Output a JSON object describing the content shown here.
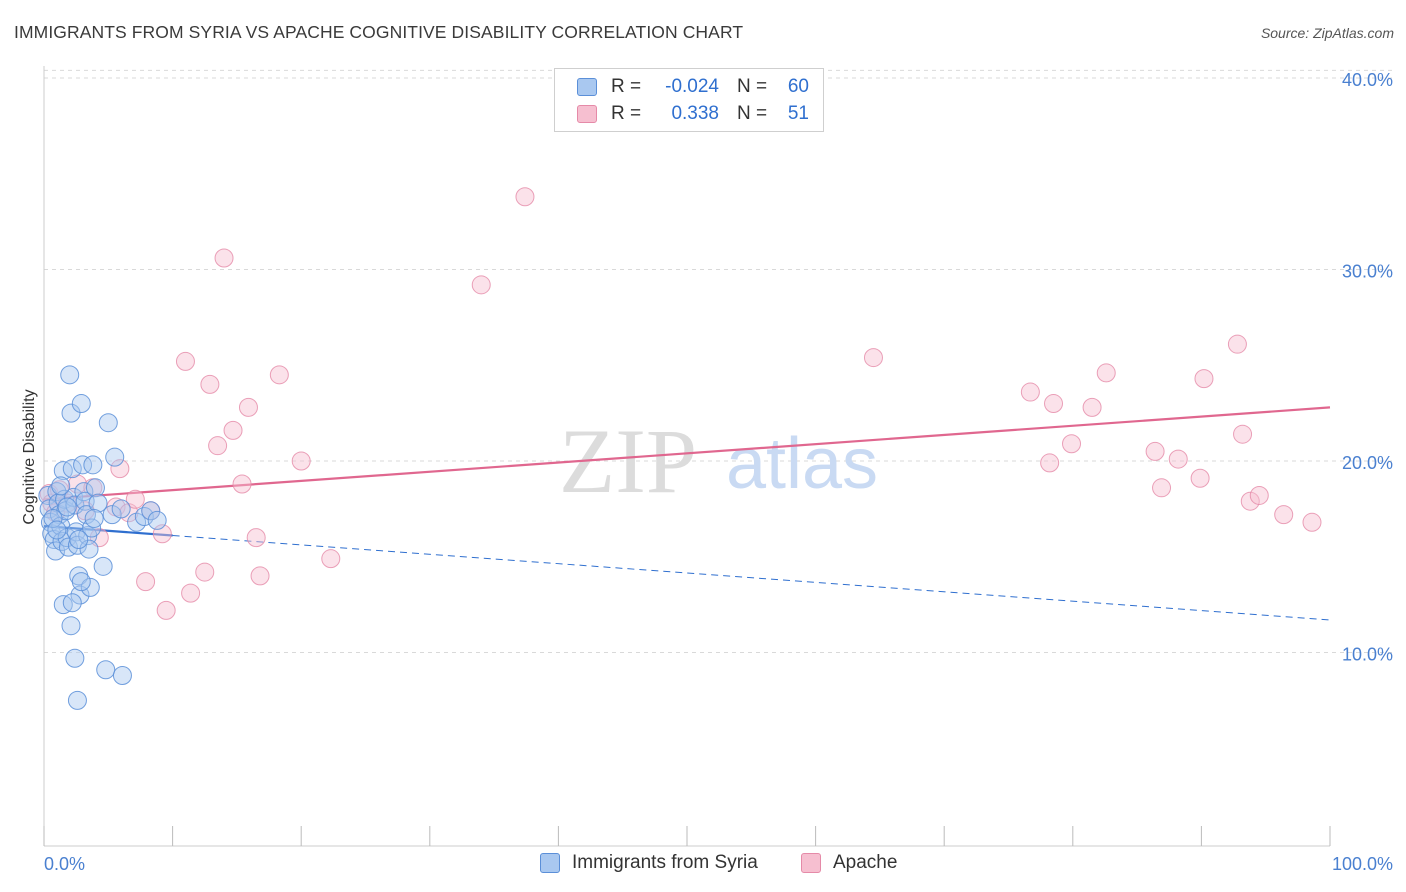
{
  "title": "IMMIGRANTS FROM SYRIA VS APACHE COGNITIVE DISABILITY CORRELATION CHART",
  "source": "Source: ZipAtlas.com",
  "watermark": {
    "zip": "ZIP",
    "atlas": "atlas"
  },
  "colors": {
    "blue_fill": "#a9c8f0",
    "blue_stroke": "#5b8fd8",
    "blue_line": "#2f6fcf",
    "pink_fill": "#f6bfd0",
    "pink_stroke": "#e58aa8",
    "pink_line": "#e0678f",
    "tick_text": "#4a80d0",
    "grid": "#d9d9d9"
  },
  "legend": {
    "rows": [
      {
        "r_label": "R =",
        "r_value": "-0.024",
        "n_label": "N =",
        "n_value": "60"
      },
      {
        "r_label": "R =",
        "r_value": "0.338",
        "n_label": "N =",
        "n_value": "51"
      }
    ]
  },
  "bottom_legend": [
    "Immigrants from Syria",
    "Apache"
  ],
  "chart_data": {
    "type": "scatter",
    "title": "IMMIGRANTS FROM SYRIA VS APACHE COGNITIVE DISABILITY CORRELATION CHART",
    "xlabel": "",
    "ylabel": "Cognitive Disability",
    "xlim": [
      0,
      100
    ],
    "ylim": [
      0,
      42
    ],
    "x_tick_labels": [
      "0.0%",
      "100.0%"
    ],
    "y_ticks": [
      10,
      20,
      30,
      40
    ],
    "y_tick_labels": [
      "10.0%",
      "20.0%",
      "30.0%",
      "40.0%"
    ],
    "grid": true,
    "legend_position": "top-center",
    "series": [
      {
        "name": "Immigrants from Syria",
        "r": -0.024,
        "n": 60,
        "trend": {
          "x": [
            0,
            100
          ],
          "y": [
            16.6,
            11.7
          ],
          "solid_until_x": 10
        },
        "points": [
          [
            0.3,
            18.2
          ],
          [
            0.4,
            17.5
          ],
          [
            0.5,
            16.8
          ],
          [
            0.6,
            16.2
          ],
          [
            0.8,
            15.9
          ],
          [
            0.9,
            15.3
          ],
          [
            1.0,
            18.4
          ],
          [
            1.1,
            17.8
          ],
          [
            1.2,
            17.2
          ],
          [
            1.3,
            16.6
          ],
          [
            1.4,
            15.8
          ],
          [
            1.5,
            19.5
          ],
          [
            1.6,
            18.0
          ],
          [
            1.7,
            17.4
          ],
          [
            1.8,
            16.0
          ],
          [
            1.9,
            15.5
          ],
          [
            2.0,
            24.5
          ],
          [
            2.1,
            22.5
          ],
          [
            2.2,
            19.6
          ],
          [
            2.3,
            18.1
          ],
          [
            2.4,
            17.7
          ],
          [
            2.5,
            16.3
          ],
          [
            2.6,
            15.6
          ],
          [
            2.7,
            14.0
          ],
          [
            2.8,
            13.0
          ],
          [
            1.5,
            12.5
          ],
          [
            2.1,
            11.4
          ],
          [
            2.4,
            9.7
          ],
          [
            2.6,
            7.5
          ],
          [
            2.9,
            23.0
          ],
          [
            3.0,
            19.8
          ],
          [
            3.1,
            18.4
          ],
          [
            3.2,
            17.9
          ],
          [
            3.3,
            17.2
          ],
          [
            3.4,
            16.1
          ],
          [
            3.5,
            15.4
          ],
          [
            3.6,
            13.4
          ],
          [
            3.8,
            19.8
          ],
          [
            4.0,
            18.6
          ],
          [
            4.2,
            17.8
          ],
          [
            2.9,
            13.7
          ],
          [
            4.6,
            14.5
          ],
          [
            4.8,
            9.1
          ],
          [
            5.0,
            22.0
          ],
          [
            5.5,
            20.2
          ],
          [
            6.1,
            8.8
          ],
          [
            3.7,
            16.5
          ],
          [
            2.2,
            12.6
          ],
          [
            0.7,
            17.0
          ],
          [
            1.0,
            16.4
          ],
          [
            1.3,
            18.7
          ],
          [
            1.8,
            17.6
          ],
          [
            2.7,
            15.9
          ],
          [
            3.9,
            17.0
          ],
          [
            5.3,
            17.2
          ],
          [
            6.0,
            17.5
          ],
          [
            7.2,
            16.8
          ],
          [
            7.8,
            17.1
          ],
          [
            8.3,
            17.4
          ],
          [
            8.8,
            16.9
          ]
        ]
      },
      {
        "name": "Apache",
        "r": 0.338,
        "n": 51,
        "trend": {
          "x": [
            0,
            100
          ],
          "y": [
            18.0,
            22.8
          ]
        },
        "points": [
          [
            0.4,
            18.3
          ],
          [
            0.6,
            17.8
          ],
          [
            0.9,
            17.3
          ],
          [
            1.2,
            18.5
          ],
          [
            1.8,
            17.8
          ],
          [
            2.6,
            18.8
          ],
          [
            3.2,
            17.4
          ],
          [
            3.8,
            18.6
          ],
          [
            4.3,
            16.0
          ],
          [
            5.6,
            17.6
          ],
          [
            5.9,
            19.6
          ],
          [
            6.6,
            17.3
          ],
          [
            7.1,
            18.0
          ],
          [
            7.9,
            13.7
          ],
          [
            8.3,
            17.4
          ],
          [
            9.2,
            16.2
          ],
          [
            9.5,
            12.2
          ],
          [
            11.0,
            25.2
          ],
          [
            11.4,
            13.1
          ],
          [
            12.5,
            14.2
          ],
          [
            12.9,
            24.0
          ],
          [
            13.5,
            20.8
          ],
          [
            14.0,
            30.6
          ],
          [
            14.7,
            21.6
          ],
          [
            15.4,
            18.8
          ],
          [
            15.9,
            22.8
          ],
          [
            16.5,
            16.0
          ],
          [
            16.8,
            14.0
          ],
          [
            18.3,
            24.5
          ],
          [
            20.0,
            20.0
          ],
          [
            22.3,
            14.9
          ],
          [
            34.0,
            29.2
          ],
          [
            37.4,
            33.8
          ],
          [
            64.5,
            25.4
          ],
          [
            76.7,
            23.6
          ],
          [
            78.2,
            19.9
          ],
          [
            78.5,
            23.0
          ],
          [
            79.9,
            20.9
          ],
          [
            81.5,
            22.8
          ],
          [
            82.6,
            24.6
          ],
          [
            86.4,
            20.5
          ],
          [
            86.9,
            18.6
          ],
          [
            88.2,
            20.1
          ],
          [
            89.9,
            19.1
          ],
          [
            90.2,
            24.3
          ],
          [
            92.8,
            26.1
          ],
          [
            93.2,
            21.4
          ],
          [
            93.8,
            17.9
          ],
          [
            94.5,
            18.2
          ],
          [
            96.4,
            17.2
          ],
          [
            98.6,
            16.8
          ]
        ]
      }
    ]
  }
}
